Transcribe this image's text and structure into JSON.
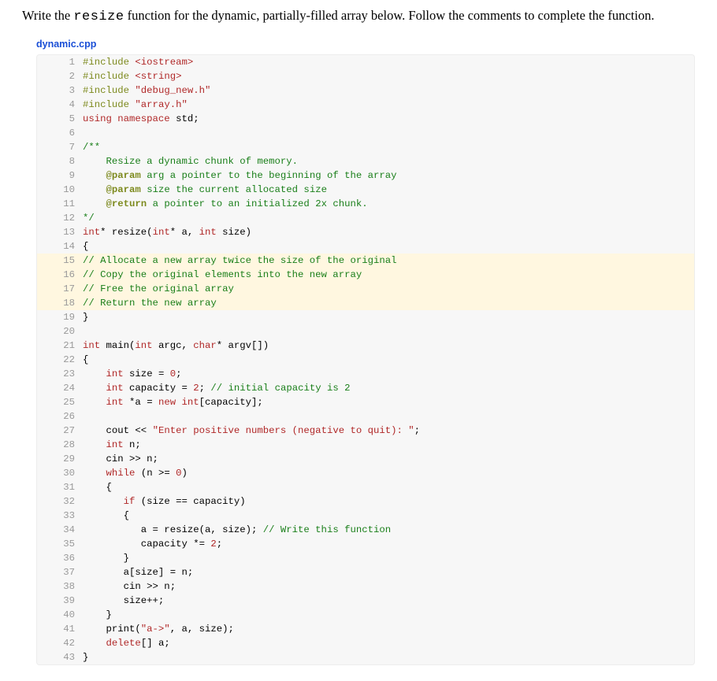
{
  "prompt": {
    "before": "Write the ",
    "code": "resize",
    "after": " function for the dynamic, partially-filled array below. Follow the comments to complete the function."
  },
  "filename": "dynamic.cpp",
  "highlight_range": [
    15,
    18
  ],
  "colors": {
    "page_bg": "#ffffff",
    "code_bg": "#f7f7f7",
    "highlight_bg": "#fff7e0",
    "gutter": "#9a9a9a",
    "filename": "#1a4fd6",
    "keyword": "#b02828",
    "preproc": "#7d8a1e",
    "comment": "#1a7f1a"
  },
  "lines": [
    {
      "n": 1,
      "tokens": [
        [
          "t-pre",
          "#include "
        ],
        [
          "t-str",
          "<iostream>"
        ]
      ]
    },
    {
      "n": 2,
      "tokens": [
        [
          "t-pre",
          "#include "
        ],
        [
          "t-str",
          "<string>"
        ]
      ]
    },
    {
      "n": 3,
      "tokens": [
        [
          "t-pre",
          "#include "
        ],
        [
          "t-str",
          "\"debug_new.h\""
        ]
      ]
    },
    {
      "n": 4,
      "tokens": [
        [
          "t-pre",
          "#include "
        ],
        [
          "t-str",
          "\"array.h\""
        ]
      ]
    },
    {
      "n": 5,
      "tokens": [
        [
          "t-key",
          "using namespace"
        ],
        [
          "",
          " std;"
        ]
      ]
    },
    {
      "n": 6,
      "tokens": [
        [
          "",
          ""
        ]
      ]
    },
    {
      "n": 7,
      "tokens": [
        [
          "t-doc",
          "/**"
        ]
      ]
    },
    {
      "n": 8,
      "tokens": [
        [
          "t-doc",
          "    Resize a dynamic chunk of memory."
        ]
      ]
    },
    {
      "n": 9,
      "tokens": [
        [
          "",
          "    "
        ],
        [
          "t-tag",
          "@param"
        ],
        [
          "t-doc",
          " arg a pointer to the beginning of the array"
        ]
      ]
    },
    {
      "n": 10,
      "tokens": [
        [
          "",
          "    "
        ],
        [
          "t-tag",
          "@param"
        ],
        [
          "t-doc",
          " size the current allocated size"
        ]
      ]
    },
    {
      "n": 11,
      "tokens": [
        [
          "",
          "    "
        ],
        [
          "t-tag",
          "@return"
        ],
        [
          "t-doc",
          " a pointer to an initialized 2x chunk."
        ]
      ]
    },
    {
      "n": 12,
      "tokens": [
        [
          "t-doc",
          "*/"
        ]
      ]
    },
    {
      "n": 13,
      "tokens": [
        [
          "t-type",
          "int"
        ],
        [
          "",
          "* resize("
        ],
        [
          "t-type",
          "int"
        ],
        [
          "",
          "* a, "
        ],
        [
          "t-type",
          "int"
        ],
        [
          "",
          " size)"
        ]
      ]
    },
    {
      "n": 14,
      "tokens": [
        [
          "",
          "{"
        ]
      ]
    },
    {
      "n": 15,
      "tokens": [
        [
          "t-com",
          "// Allocate a new array twice the size of the original"
        ]
      ]
    },
    {
      "n": 16,
      "tokens": [
        [
          "t-com",
          "// Copy the original elements into the new array"
        ]
      ]
    },
    {
      "n": 17,
      "tokens": [
        [
          "t-com",
          "// Free the original array"
        ]
      ]
    },
    {
      "n": 18,
      "tokens": [
        [
          "t-com",
          "// Return the new array"
        ]
      ]
    },
    {
      "n": 19,
      "tokens": [
        [
          "",
          "}"
        ]
      ]
    },
    {
      "n": 20,
      "tokens": [
        [
          "",
          ""
        ]
      ]
    },
    {
      "n": 21,
      "tokens": [
        [
          "t-type",
          "int"
        ],
        [
          "",
          " main("
        ],
        [
          "t-type",
          "int"
        ],
        [
          "",
          " argc, "
        ],
        [
          "t-type",
          "char"
        ],
        [
          "",
          "* argv[])"
        ]
      ]
    },
    {
      "n": 22,
      "tokens": [
        [
          "",
          "{"
        ]
      ]
    },
    {
      "n": 23,
      "tokens": [
        [
          "",
          "    "
        ],
        [
          "t-type",
          "int"
        ],
        [
          "",
          " size = "
        ],
        [
          "t-num",
          "0"
        ],
        [
          "",
          ";"
        ]
      ]
    },
    {
      "n": 24,
      "tokens": [
        [
          "",
          "    "
        ],
        [
          "t-type",
          "int"
        ],
        [
          "",
          " capacity = "
        ],
        [
          "t-num",
          "2"
        ],
        [
          "",
          "; "
        ],
        [
          "t-com",
          "// initial capacity is 2"
        ]
      ]
    },
    {
      "n": 25,
      "tokens": [
        [
          "",
          "    "
        ],
        [
          "t-type",
          "int"
        ],
        [
          "",
          " *a = "
        ],
        [
          "t-key",
          "new"
        ],
        [
          "",
          " "
        ],
        [
          "t-type",
          "int"
        ],
        [
          "",
          "[capacity];"
        ]
      ]
    },
    {
      "n": 26,
      "tokens": [
        [
          "",
          ""
        ]
      ]
    },
    {
      "n": 27,
      "tokens": [
        [
          "",
          "    cout << "
        ],
        [
          "t-str",
          "\"Enter positive numbers (negative to quit): \""
        ],
        [
          "",
          ";"
        ]
      ]
    },
    {
      "n": 28,
      "tokens": [
        [
          "",
          "    "
        ],
        [
          "t-type",
          "int"
        ],
        [
          "",
          " n;"
        ]
      ]
    },
    {
      "n": 29,
      "tokens": [
        [
          "",
          "    cin >> n;"
        ]
      ]
    },
    {
      "n": 30,
      "tokens": [
        [
          "",
          "    "
        ],
        [
          "t-key",
          "while"
        ],
        [
          "",
          " (n >= "
        ],
        [
          "t-num",
          "0"
        ],
        [
          "",
          ")"
        ]
      ]
    },
    {
      "n": 31,
      "tokens": [
        [
          "",
          "    {"
        ]
      ]
    },
    {
      "n": 32,
      "tokens": [
        [
          "",
          "       "
        ],
        [
          "t-key",
          "if"
        ],
        [
          "",
          " (size == capacity)"
        ]
      ]
    },
    {
      "n": 33,
      "tokens": [
        [
          "",
          "       {"
        ]
      ]
    },
    {
      "n": 34,
      "tokens": [
        [
          "",
          "          a = resize(a, size); "
        ],
        [
          "t-com",
          "// Write this function"
        ]
      ]
    },
    {
      "n": 35,
      "tokens": [
        [
          "",
          "          capacity *= "
        ],
        [
          "t-num",
          "2"
        ],
        [
          "",
          ";"
        ]
      ]
    },
    {
      "n": 36,
      "tokens": [
        [
          "",
          "       }"
        ]
      ]
    },
    {
      "n": 37,
      "tokens": [
        [
          "",
          "       a[size] = n;"
        ]
      ]
    },
    {
      "n": 38,
      "tokens": [
        [
          "",
          "       cin >> n;"
        ]
      ]
    },
    {
      "n": 39,
      "tokens": [
        [
          "",
          "       size++;"
        ]
      ]
    },
    {
      "n": 40,
      "tokens": [
        [
          "",
          "    }"
        ]
      ]
    },
    {
      "n": 41,
      "tokens": [
        [
          "",
          "    print("
        ],
        [
          "t-str",
          "\"a->\""
        ],
        [
          "",
          ", a, size);"
        ]
      ]
    },
    {
      "n": 42,
      "tokens": [
        [
          "",
          "    "
        ],
        [
          "t-key",
          "delete"
        ],
        [
          "",
          "[] a;"
        ]
      ]
    },
    {
      "n": 43,
      "tokens": [
        [
          "",
          "}"
        ]
      ]
    }
  ]
}
